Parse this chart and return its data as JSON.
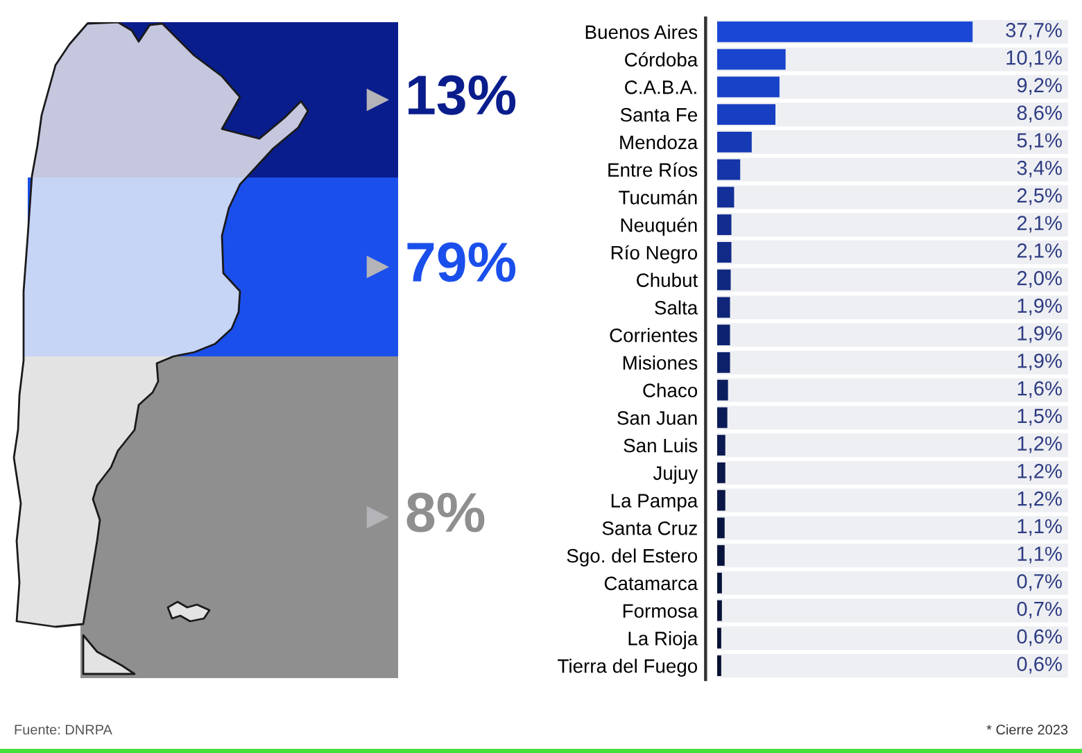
{
  "chart_data": [
    {
      "type": "other",
      "categories": [
        null,
        null,
        null
      ],
      "values": [
        13,
        79,
        8
      ],
      "colors": [
        "#0a1d8c",
        "#1b4fec",
        "#8f8f8f"
      ],
      "value_labels": [
        "13%",
        "79%",
        "8%"
      ]
    },
    {
      "type": "bar",
      "orientation": "horizontal",
      "categories": [
        "Buenos Aires",
        "Córdoba",
        "C.A.B.A.",
        "Santa Fe",
        "Mendoza",
        "Entre Ríos",
        "Tucumán",
        "Neuquén",
        "Río Negro",
        "Chubut",
        "Salta",
        "Corrientes",
        "Misiones",
        "Chaco",
        "San Juan",
        "San Luis",
        "Jujuy",
        "La Pampa",
        "Santa Cruz",
        "Sgo. del Estero",
        "Catamarca",
        "Formosa",
        "La Rioja",
        "Tierra del Fuego"
      ],
      "values": [
        37.7,
        10.1,
        9.2,
        8.6,
        5.1,
        3.4,
        2.5,
        2.1,
        2.1,
        2.0,
        1.9,
        1.9,
        1.9,
        1.6,
        1.5,
        1.2,
        1.2,
        1.2,
        1.1,
        1.1,
        0.7,
        0.7,
        0.6,
        0.6
      ],
      "colors": [
        "#1a47d6",
        "#1944cd",
        "#1842c8",
        "#183fc2",
        "#163ab4",
        "#1535a8",
        "#132f98",
        "#122c8f",
        "#112a88",
        "#10287f",
        "#0f2577",
        "#0e2370",
        "#0d216a",
        "#0c1e5e",
        "#0b1c58",
        "#0b1a50",
        "#0a184a",
        "#0a1746",
        "#091540",
        "#09143c",
        "#081338",
        "#081236",
        "#081133",
        "#081030"
      ],
      "value_labels": [
        "37,7%",
        "10,1%",
        "9,2%",
        "8,6%",
        "5,1%",
        "3,4%",
        "2,5%",
        "2,1%",
        "2,1%",
        "2,0%",
        "1,9%",
        "1,9%",
        "1,9%",
        "1,6%",
        "1,5%",
        "1,2%",
        "1,2%",
        "1,2%",
        "1,1%",
        "1,1%",
        "0,7%",
        "0,7%",
        "0,6%",
        "0,6%"
      ],
      "tick_labels": "y",
      "annotations": [
        "Fuente: DNRPA",
        "* Cierre 2023"
      ]
    }
  ]
}
